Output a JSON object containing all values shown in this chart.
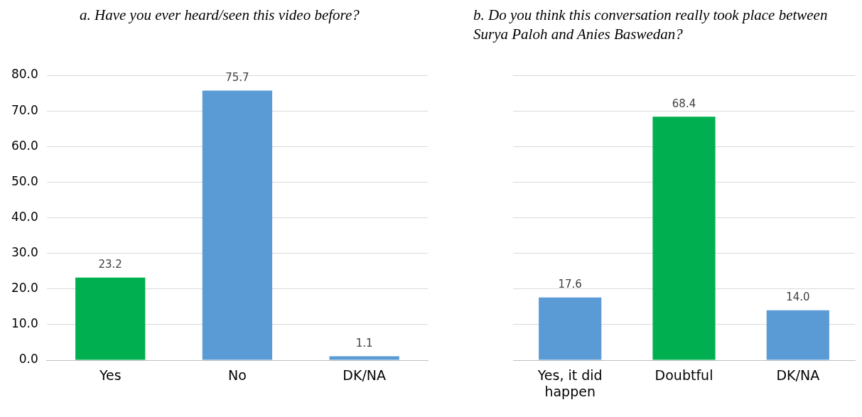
{
  "chart_data": [
    {
      "type": "bar",
      "title": "a. Have you ever heard/seen this video before?",
      "categories": [
        "Yes",
        "No",
        "DK/NA"
      ],
      "values": [
        23.2,
        75.7,
        1.1
      ],
      "colors": [
        "#00b050",
        "#5b9bd5",
        "#5b9bd5"
      ],
      "value_labels": [
        "23.2",
        "75.7",
        "1.1"
      ],
      "ylim": [
        0,
        80
      ],
      "yticks": [
        {
          "value": 0,
          "label": "0.0"
        },
        {
          "value": 10,
          "label": "10.0"
        },
        {
          "value": 20,
          "label": "20.0"
        },
        {
          "value": 30,
          "label": "30.0"
        },
        {
          "value": 40,
          "label": "40.0"
        },
        {
          "value": 50,
          "label": "50.0"
        },
        {
          "value": 60,
          "label": "60.0"
        },
        {
          "value": 70,
          "label": "70.0"
        },
        {
          "value": 80,
          "label": "80.0"
        }
      ],
      "grid": "y",
      "legend": false
    },
    {
      "type": "bar",
      "title": "b. Do you think this conversation really took place between Surya Paloh and Anies Baswedan?",
      "categories": [
        "Yes, it did happen",
        "Doubtful",
        "DK/NA"
      ],
      "values": [
        17.6,
        68.4,
        14.0
      ],
      "colors": [
        "#5b9bd5",
        "#00b050",
        "#5b9bd5"
      ],
      "value_labels": [
        "17.6",
        "68.4",
        "14.0"
      ],
      "ylim": [
        0,
        80
      ],
      "yticks": [
        0,
        10,
        20,
        30,
        40,
        50,
        60,
        70,
        80
      ],
      "grid": "y",
      "legend": false,
      "tick_labels": "x"
    }
  ]
}
